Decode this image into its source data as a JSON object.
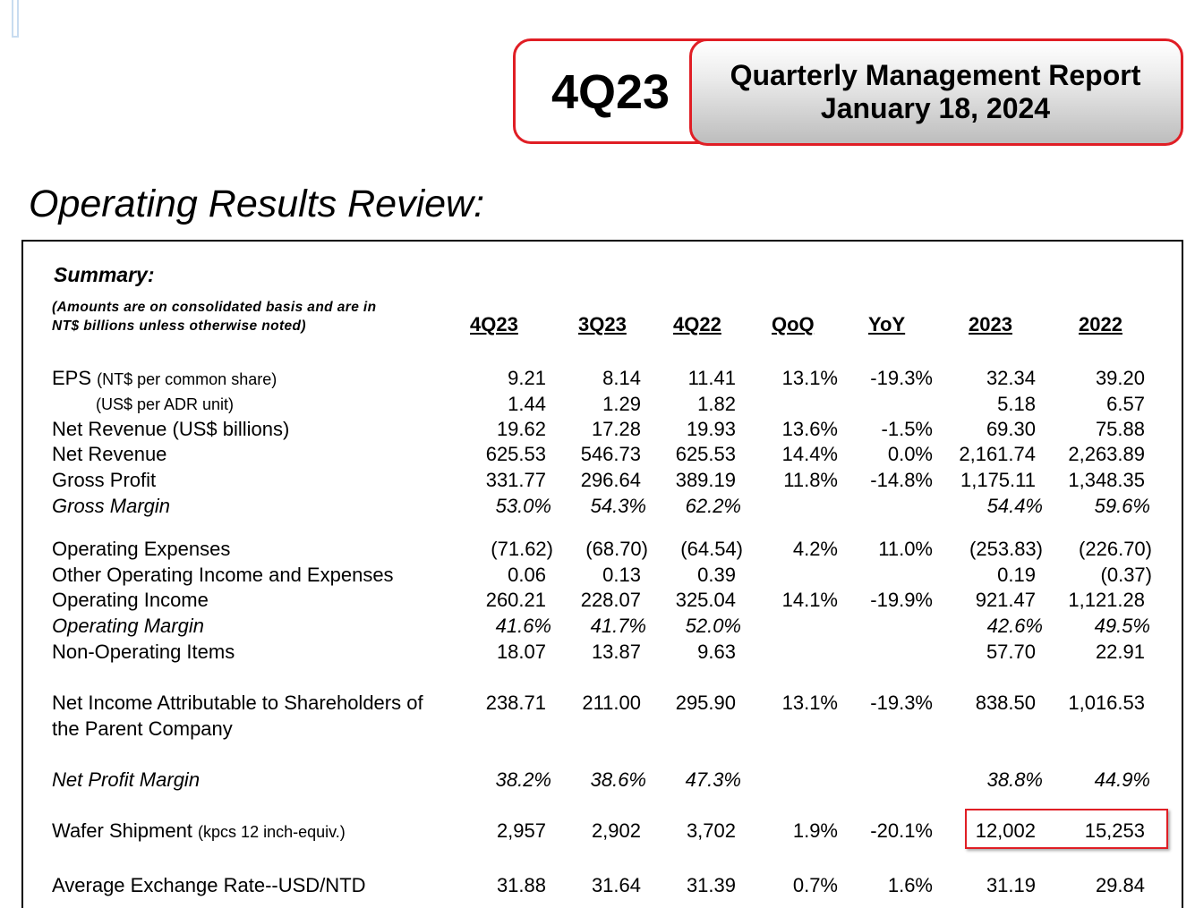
{
  "badge": {
    "quarter": "4Q23",
    "report_title": "Quarterly Management Report",
    "report_date": "January 18, 2024"
  },
  "section_title": "Operating Results Review:",
  "summary": {
    "title": "Summary:",
    "note_line1": "(Amounts are on consolidated basis and are in",
    "note_line2": "NT$ billions unless otherwise noted)"
  },
  "columns": [
    "4Q23",
    "3Q23",
    "4Q22",
    "QoQ",
    "YoY",
    "2023",
    "2022"
  ],
  "rows": [
    {
      "label": "EPS",
      "sub": "(NT$ per common share)",
      "values": [
        "9.21",
        "8.14",
        "11.41",
        "13.1%",
        "-19.3%",
        "32.34",
        "39.20"
      ]
    },
    {
      "label": "(US$ per ADR unit)",
      "values": [
        "1.44",
        "1.29",
        "1.82",
        "",
        "",
        "5.18",
        "6.57"
      ]
    },
    {
      "label": "Net Revenue (US$ billions)",
      "values": [
        "19.62",
        "17.28",
        "19.93",
        "13.6%",
        "-1.5%",
        "69.30",
        "75.88"
      ]
    },
    {
      "label": "Net Revenue",
      "values": [
        "625.53",
        "546.73",
        "625.53",
        "14.4%",
        "0.0%",
        "2,161.74",
        "2,263.89"
      ]
    },
    {
      "label": "Gross Profit",
      "values": [
        "331.77",
        "296.64",
        "389.19",
        "11.8%",
        "-14.8%",
        "1,175.11",
        "1,348.35"
      ]
    },
    {
      "label": "Gross Margin",
      "values": [
        "53.0%",
        "54.3%",
        "62.2%",
        "",
        "",
        "54.4%",
        "59.6%"
      ]
    },
    {
      "label": "Operating Expenses",
      "values": [
        "(71.62)",
        "(68.70)",
        "(64.54)",
        "4.2%",
        "11.0%",
        "(253.83)",
        "(226.70)"
      ]
    },
    {
      "label": "Other Operating Income and Expenses",
      "values": [
        "0.06",
        "0.13",
        "0.39",
        "",
        "",
        "0.19",
        "(0.37)"
      ]
    },
    {
      "label": "Operating Income",
      "values": [
        "260.21",
        "228.07",
        "325.04",
        "14.1%",
        "-19.9%",
        "921.47",
        "1,121.28"
      ]
    },
    {
      "label": "Operating Margin",
      "values": [
        "41.6%",
        "41.7%",
        "52.0%",
        "",
        "",
        "42.6%",
        "49.5%"
      ]
    },
    {
      "label": "Non-Operating Items",
      "values": [
        "18.07",
        "13.87",
        "9.63",
        "",
        "",
        "57.70",
        "22.91"
      ]
    },
    {
      "label": "Net Income Attributable to Shareholders of",
      "label2": "the Parent Company",
      "values": [
        "238.71",
        "211.00",
        "295.90",
        "13.1%",
        "-19.3%",
        "838.50",
        "1,016.53"
      ]
    },
    {
      "label": "Net Profit Margin",
      "values": [
        "38.2%",
        "38.6%",
        "47.3%",
        "",
        "",
        "38.8%",
        "44.9%"
      ]
    },
    {
      "label": "Wafer Shipment",
      "sub": "(kpcs 12 inch-equiv.)",
      "values": [
        "2,957",
        "2,902",
        "3,702",
        "1.9%",
        "-20.1%",
        "12,002",
        "15,253"
      ]
    },
    {
      "label": "Average Exchange Rate--USD/NTD",
      "values": [
        "31.88",
        "31.64",
        "31.39",
        "0.7%",
        "1.6%",
        "31.19",
        "29.84"
      ]
    }
  ],
  "colors": {
    "accent_red": "#e01e25"
  }
}
